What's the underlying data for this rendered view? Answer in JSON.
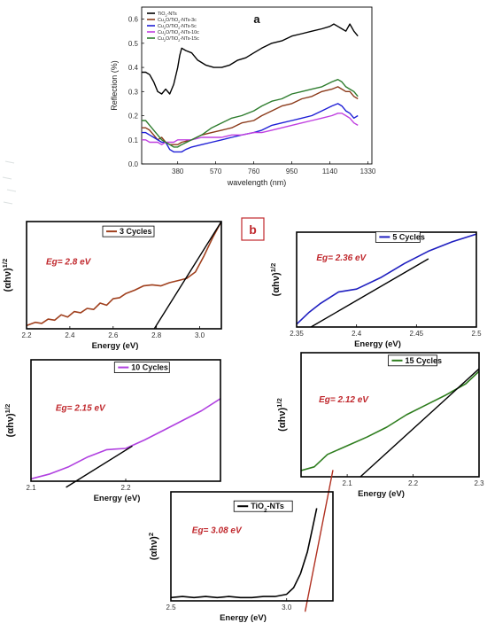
{
  "chart_data": [
    {
      "type": "line",
      "panel_label": "a",
      "xlabel": "wavelength (nm)",
      "ylabel": "Reflection (%)",
      "xlim": [
        200,
        1350
      ],
      "ylim": [
        0.0,
        0.65
      ],
      "xticks": [
        380,
        570,
        760,
        950,
        1140,
        1330
      ],
      "yticks": [
        0.0,
        0.1,
        0.2,
        0.3,
        0.4,
        0.5,
        0.6
      ],
      "grid": false,
      "legend_position": "top-left",
      "series": [
        {
          "name": "TiO2-NTs",
          "color": "#000000",
          "x": [
            200,
            220,
            240,
            260,
            280,
            300,
            320,
            340,
            360,
            380,
            390,
            400,
            420,
            450,
            480,
            520,
            560,
            600,
            640,
            680,
            720,
            760,
            800,
            850,
            900,
            950,
            1000,
            1050,
            1100,
            1140,
            1160,
            1180,
            1200,
            1220,
            1240,
            1260,
            1280
          ],
          "y": [
            0.38,
            0.38,
            0.37,
            0.34,
            0.3,
            0.29,
            0.31,
            0.29,
            0.33,
            0.4,
            0.45,
            0.48,
            0.47,
            0.46,
            0.43,
            0.41,
            0.4,
            0.4,
            0.41,
            0.43,
            0.44,
            0.46,
            0.48,
            0.5,
            0.51,
            0.53,
            0.54,
            0.55,
            0.56,
            0.57,
            0.58,
            0.57,
            0.56,
            0.55,
            0.58,
            0.55,
            0.53
          ]
        },
        {
          "name": "Cu2O/TiO2-NTs-3c",
          "color": "#8b3a1a",
          "x": [
            200,
            220,
            240,
            260,
            280,
            300,
            320,
            340,
            360,
            380,
            400,
            450,
            500,
            550,
            600,
            650,
            700,
            760,
            800,
            850,
            900,
            950,
            1000,
            1050,
            1100,
            1150,
            1180,
            1200,
            1220,
            1240,
            1260,
            1280
          ],
          "y": [
            0.15,
            0.15,
            0.14,
            0.12,
            0.1,
            0.11,
            0.09,
            0.08,
            0.08,
            0.08,
            0.09,
            0.1,
            0.12,
            0.13,
            0.14,
            0.15,
            0.17,
            0.18,
            0.2,
            0.22,
            0.24,
            0.25,
            0.27,
            0.28,
            0.3,
            0.31,
            0.32,
            0.31,
            0.3,
            0.3,
            0.28,
            0.27
          ]
        },
        {
          "name": "Cu2O/TiO2-NTs-5c",
          "color": "#1f1fd6",
          "x": [
            200,
            220,
            240,
            260,
            280,
            300,
            320,
            340,
            360,
            380,
            400,
            420,
            450,
            500,
            550,
            600,
            650,
            700,
            760,
            800,
            850,
            900,
            950,
            1000,
            1050,
            1100,
            1150,
            1180,
            1200,
            1220,
            1240,
            1260,
            1280
          ],
          "y": [
            0.13,
            0.13,
            0.12,
            0.11,
            0.1,
            0.09,
            0.09,
            0.06,
            0.05,
            0.05,
            0.05,
            0.06,
            0.07,
            0.08,
            0.09,
            0.1,
            0.11,
            0.12,
            0.13,
            0.14,
            0.16,
            0.17,
            0.18,
            0.19,
            0.2,
            0.22,
            0.24,
            0.25,
            0.24,
            0.22,
            0.21,
            0.19,
            0.2
          ]
        },
        {
          "name": "Cu2O/TiO2-NTs-10c",
          "color": "#c040e0",
          "x": [
            200,
            220,
            240,
            260,
            280,
            300,
            320,
            340,
            360,
            380,
            400,
            450,
            500,
            550,
            600,
            650,
            700,
            760,
            800,
            850,
            900,
            950,
            1000,
            1050,
            1100,
            1150,
            1180,
            1200,
            1220,
            1240,
            1260,
            1280
          ],
          "y": [
            0.1,
            0.1,
            0.09,
            0.09,
            0.09,
            0.08,
            0.09,
            0.09,
            0.09,
            0.1,
            0.1,
            0.1,
            0.11,
            0.11,
            0.11,
            0.12,
            0.12,
            0.13,
            0.13,
            0.14,
            0.15,
            0.16,
            0.17,
            0.18,
            0.19,
            0.2,
            0.21,
            0.21,
            0.2,
            0.19,
            0.17,
            0.16
          ]
        },
        {
          "name": "Cu2O/TiO2-NTs-15c",
          "color": "#2e7d2e",
          "x": [
            200,
            220,
            240,
            260,
            280,
            300,
            320,
            340,
            360,
            380,
            400,
            450,
            500,
            550,
            600,
            650,
            700,
            760,
            800,
            850,
            900,
            950,
            1000,
            1050,
            1100,
            1150,
            1180,
            1200,
            1220,
            1240,
            1260,
            1280
          ],
          "y": [
            0.18,
            0.18,
            0.16,
            0.14,
            0.12,
            0.1,
            0.09,
            0.08,
            0.07,
            0.07,
            0.08,
            0.1,
            0.12,
            0.15,
            0.17,
            0.19,
            0.2,
            0.22,
            0.24,
            0.26,
            0.27,
            0.29,
            0.3,
            0.31,
            0.32,
            0.34,
            0.35,
            0.34,
            0.32,
            0.31,
            0.3,
            0.28
          ]
        }
      ]
    },
    {
      "type": "line",
      "panel_label": "b",
      "legend": "3 Cycles",
      "annotation": "Eg= 2.8 eV",
      "xlabel": "Energy (eV)",
      "ylabel": "(αhν)1/2",
      "xlim": [
        2.2,
        3.1
      ],
      "ylim": [
        0,
        1
      ],
      "xticks": [
        2.2,
        2.4,
        2.6,
        2.8,
        3.0
      ],
      "series": [
        {
          "name": "3 Cycles",
          "color": "#a0401e",
          "x": [
            2.2,
            2.24,
            2.27,
            2.3,
            2.33,
            2.36,
            2.39,
            2.42,
            2.45,
            2.48,
            2.51,
            2.54,
            2.57,
            2.6,
            2.63,
            2.66,
            2.7,
            2.74,
            2.78,
            2.82,
            2.86,
            2.9,
            2.94,
            2.98,
            3.02,
            3.06,
            3.1
          ],
          "y": [
            0.03,
            0.06,
            0.05,
            0.09,
            0.08,
            0.13,
            0.11,
            0.16,
            0.15,
            0.19,
            0.18,
            0.24,
            0.22,
            0.28,
            0.29,
            0.33,
            0.36,
            0.4,
            0.41,
            0.4,
            0.43,
            0.45,
            0.47,
            0.53,
            0.68,
            0.85,
            1.0
          ]
        },
        {
          "name": "tangent",
          "color": "#000000",
          "x": [
            2.79,
            3.1
          ],
          "y": [
            0.0,
            1.0
          ]
        }
      ]
    },
    {
      "type": "line",
      "legend": "5 Cycles",
      "annotation": "Eg= 2.36 eV",
      "xlabel": "Energy (eV)",
      "ylabel": "(αhν)1/2",
      "xlim": [
        2.35,
        2.5
      ],
      "ylim": [
        0,
        1
      ],
      "xticks": [
        2.35,
        2.4,
        2.45,
        2.5
      ],
      "series": [
        {
          "name": "5 Cycles",
          "color": "#1f1fc0",
          "x": [
            2.35,
            2.36,
            2.37,
            2.385,
            2.4,
            2.42,
            2.44,
            2.46,
            2.48,
            2.5
          ],
          "y": [
            0.03,
            0.15,
            0.25,
            0.37,
            0.4,
            0.52,
            0.67,
            0.8,
            0.9,
            0.98
          ]
        },
        {
          "name": "tangent",
          "color": "#000000",
          "x": [
            2.362,
            2.46
          ],
          "y": [
            0.0,
            0.72
          ]
        }
      ]
    },
    {
      "type": "line",
      "legend": "10 Cycles",
      "annotation": "Eg= 2.15 eV",
      "xlabel": "Energy (eV)",
      "ylabel": "(αhν)1/2",
      "xlim": [
        2.1,
        2.3
      ],
      "ylim": [
        0,
        1
      ],
      "xticks": [
        2.1,
        2.2
      ],
      "series": [
        {
          "name": "10 Cycles",
          "color": "#b040e0",
          "x": [
            2.1,
            2.12,
            2.14,
            2.16,
            2.18,
            2.2,
            2.22,
            2.24,
            2.26,
            2.28,
            2.3
          ],
          "y": [
            0.02,
            0.06,
            0.12,
            0.2,
            0.26,
            0.27,
            0.34,
            0.42,
            0.5,
            0.58,
            0.68
          ]
        },
        {
          "name": "tangent",
          "color": "#000000",
          "x": [
            2.137,
            2.207
          ],
          "y": [
            -0.05,
            0.29
          ]
        }
      ]
    },
    {
      "type": "line",
      "legend": "15 Cycles",
      "annotation": "Eg= 2.12 eV",
      "xlabel": "Energy (eV)",
      "ylabel": "(αhν)1/2",
      "xlim": [
        2.03,
        2.3
      ],
      "ylim": [
        0,
        1
      ],
      "xticks": [
        2.1,
        2.2,
        2.3
      ],
      "series": [
        {
          "name": "15 Cycles",
          "color": "#2e7d1e",
          "x": [
            2.03,
            2.05,
            2.07,
            2.1,
            2.13,
            2.16,
            2.19,
            2.22,
            2.25,
            2.28,
            2.3
          ],
          "y": [
            0.05,
            0.08,
            0.18,
            0.25,
            0.32,
            0.4,
            0.5,
            0.58,
            0.66,
            0.75,
            0.85
          ]
        },
        {
          "name": "tangent",
          "color": "#000000",
          "x": [
            2.12,
            2.3
          ],
          "y": [
            0.0,
            0.87
          ]
        }
      ]
    },
    {
      "type": "line",
      "legend": "TiO2-NTs",
      "annotation": "Eg= 3.08 eV",
      "xlabel": "Energy (eV)",
      "ylabel": "(αhν)2",
      "xlim": [
        2.5,
        3.2
      ],
      "ylim": [
        0,
        1
      ],
      "xticks": [
        2.5,
        3.0
      ],
      "series": [
        {
          "name": "TiO2-NTs",
          "color": "#000000",
          "x": [
            2.5,
            2.55,
            2.6,
            2.65,
            2.7,
            2.75,
            2.8,
            2.85,
            2.9,
            2.95,
            3.0,
            3.03,
            3.06,
            3.09,
            3.11,
            3.13
          ],
          "y": [
            0.03,
            0.04,
            0.03,
            0.04,
            0.03,
            0.04,
            0.03,
            0.03,
            0.04,
            0.04,
            0.06,
            0.12,
            0.25,
            0.45,
            0.65,
            0.85
          ]
        },
        {
          "name": "tangent",
          "color": "#b03020",
          "x": [
            3.08,
            3.2
          ],
          "y": [
            -0.1,
            1.2
          ]
        }
      ]
    }
  ],
  "styles": {
    "eg_color": "#c0282d",
    "panel_b_box_color": "#c0282d",
    "frame_color": "#000000"
  }
}
